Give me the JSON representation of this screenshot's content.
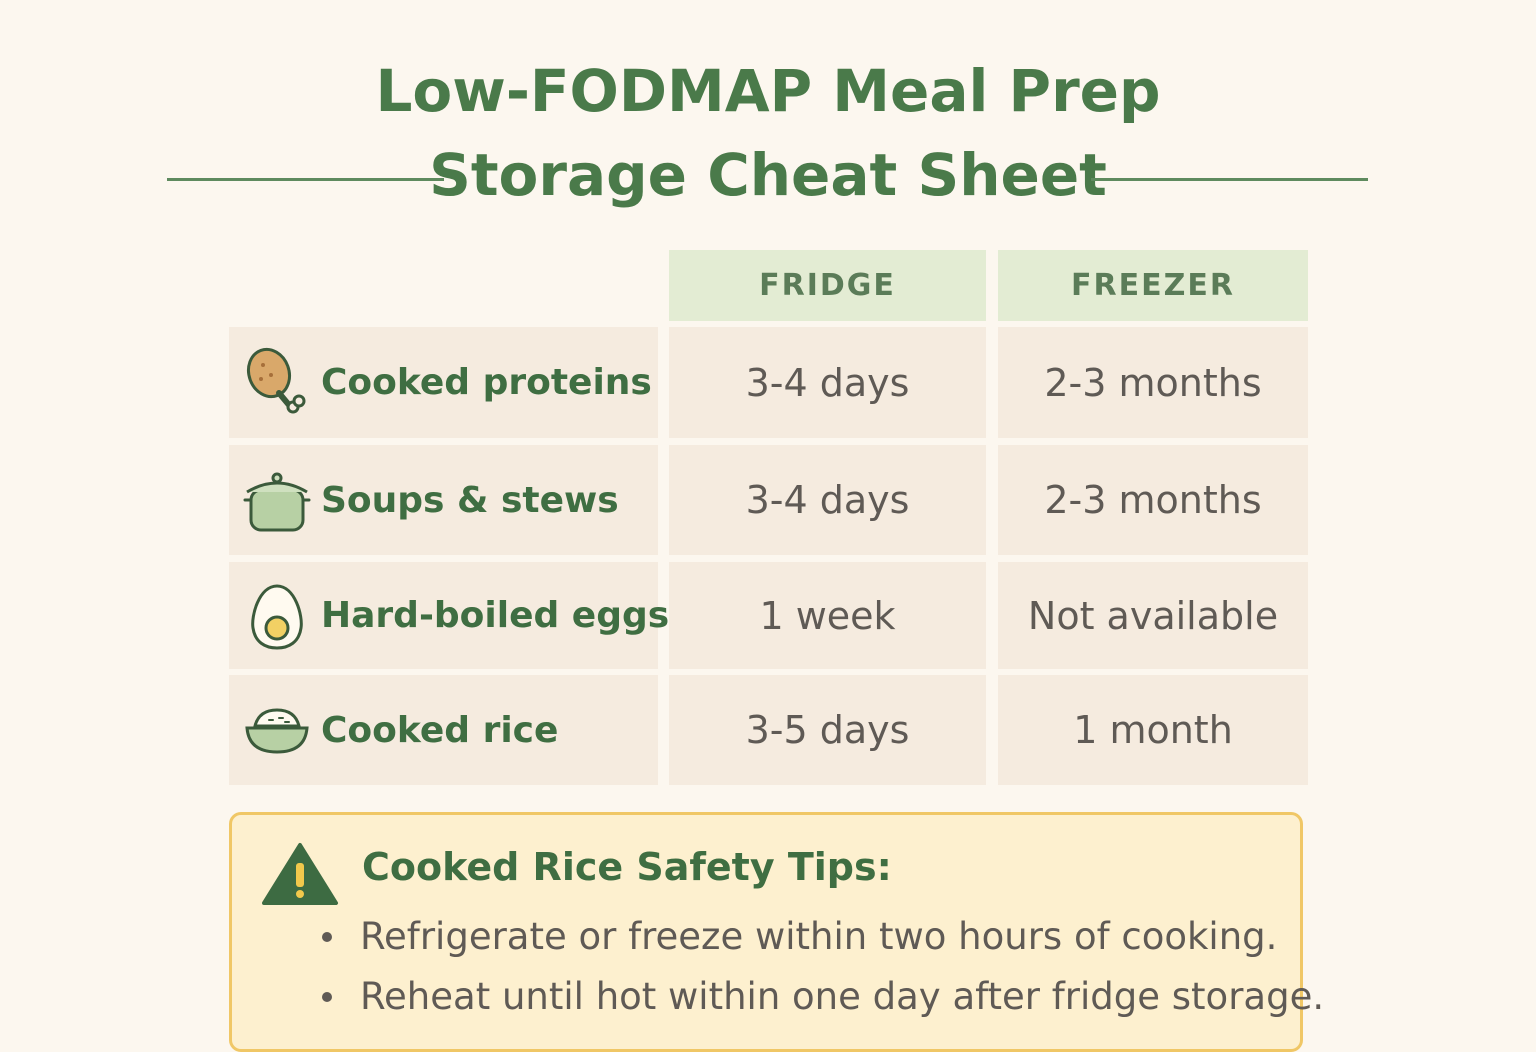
{
  "header": {
    "title_line1": "Low-FODMAP Meal Prep",
    "title_line2": "Storage Cheat Sheet"
  },
  "table": {
    "columns": [
      "FRIDGE",
      "FREEZER"
    ],
    "rows": [
      {
        "icon": "chicken-drumstick-icon",
        "label": "Cooked proteins",
        "fridge": "3-4 days",
        "freezer": "2-3 months"
      },
      {
        "icon": "soup-pot-icon",
        "label": "Soups & stews",
        "fridge": "3-4 days",
        "freezer": "2-3 months"
      },
      {
        "icon": "boiled-egg-icon",
        "label": "Hard-boiled eggs",
        "fridge": "1 week",
        "freezer": "Not available"
      },
      {
        "icon": "rice-bowl-icon",
        "label": "Cooked rice",
        "fridge": "3-5 days",
        "freezer": "1 month"
      }
    ]
  },
  "tips": {
    "icon": "warning-icon",
    "title": "Cooked Rice Safety Tips:",
    "items": [
      "Refrigerate or freeze within two hours of cooking.",
      "Reheat until hot within one day after fridge storage."
    ]
  },
  "colors": {
    "background": "#fcf7ef",
    "accent_green": "#4a7a4a",
    "header_cell": "#e3ecd3",
    "cell": "#f5ebdf",
    "tips_background": "#fdf0cf",
    "tips_border": "#f0c766"
  }
}
